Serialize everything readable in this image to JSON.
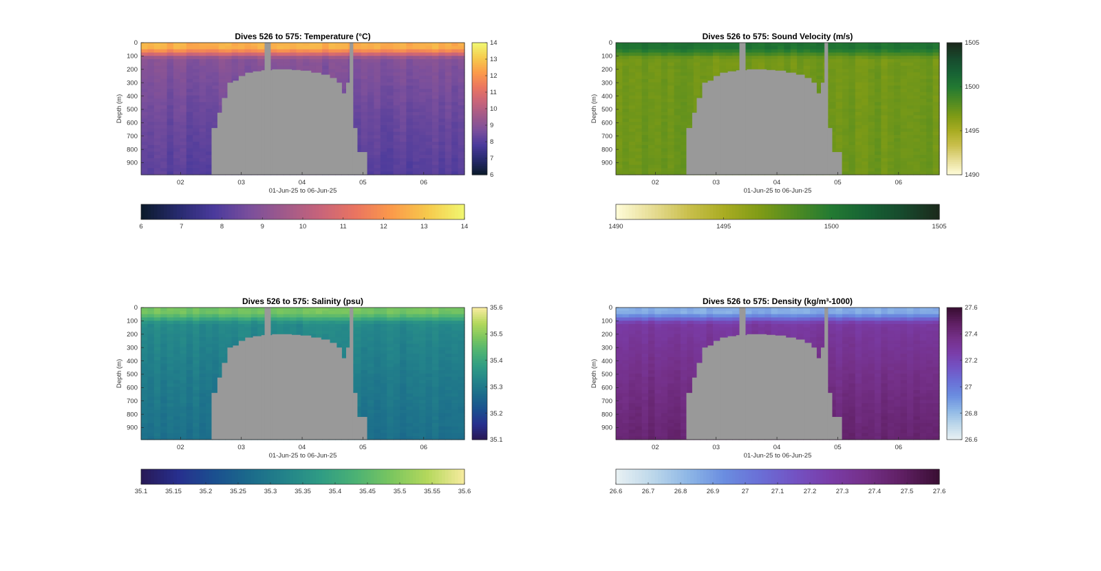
{
  "figure": {
    "x_range_label": "01-Jun-25 to 06-Jun-25",
    "depth_label": "Depth (m)",
    "seafloor_color": "#999999",
    "background": "#ffffff"
  },
  "chart_data": [
    {
      "type": "heatmap",
      "title": "Dives 526 to 575: Temperature (°C)",
      "variable": "temperature",
      "units": "°C",
      "xlabel": "01-Jun-25 to 06-Jun-25",
      "ylabel": "Depth (m)",
      "x_ticks": [
        "02",
        "03",
        "04",
        "05",
        "06"
      ],
      "y_ticks": [
        0,
        100,
        200,
        300,
        400,
        500,
        600,
        700,
        800,
        900
      ],
      "ylim": [
        0,
        990
      ],
      "y_reversed": true,
      "clim": [
        6,
        14
      ],
      "colorbar_right_ticks": [
        6,
        7,
        8,
        9,
        10,
        11,
        12,
        13,
        14
      ],
      "colorbar_bottom_ticks": [
        6,
        7,
        8,
        9,
        10,
        11,
        12,
        13,
        14
      ],
      "colormap": [
        "#0b1b2d",
        "#272a6e",
        "#4a3a9c",
        "#7a4f9c",
        "#a05a8a",
        "#c8647a",
        "#ea7560",
        "#fb9a4a",
        "#f6c94c",
        "#f1f56f"
      ],
      "profile": {
        "surface": 12.6,
        "deep": 8.0,
        "mid_deep": 9.3
      },
      "grid": false
    },
    {
      "type": "heatmap",
      "title": "Dives 526 to 575: Sound Velocity (m/s)",
      "variable": "sound_velocity",
      "units": "m/s",
      "xlabel": "01-Jun-25 to 06-Jun-25",
      "ylabel": "Depth (m)",
      "x_ticks": [
        "02",
        "03",
        "04",
        "05",
        "06"
      ],
      "y_ticks": [
        0,
        100,
        200,
        300,
        400,
        500,
        600,
        700,
        800,
        900
      ],
      "ylim": [
        0,
        990
      ],
      "y_reversed": true,
      "clim": [
        1490,
        1505
      ],
      "colorbar_right_ticks": [
        1490,
        1495,
        1500,
        1505
      ],
      "colorbar_bottom_ticks": [
        1490,
        1495,
        1500,
        1505
      ],
      "colormap": [
        "#fefbd6",
        "#e6dc93",
        "#c9bf4c",
        "#a9ac22",
        "#7f9b16",
        "#4f8b22",
        "#237a32",
        "#176234",
        "#174a2d",
        "#1b2a1c"
      ],
      "profile": {
        "surface": 1500.5,
        "deep": 1497.3,
        "mid_deep": 1497.0
      },
      "grid": false
    },
    {
      "type": "heatmap",
      "title": "Dives 526 to 575: Salinity (psu)",
      "variable": "salinity",
      "units": "psu",
      "xlabel": "01-Jun-25 to 06-Jun-25",
      "ylabel": "Depth (m)",
      "x_ticks": [
        "02",
        "03",
        "04",
        "05",
        "06"
      ],
      "y_ticks": [
        0,
        100,
        200,
        300,
        400,
        500,
        600,
        700,
        800,
        900
      ],
      "ylim": [
        0,
        990
      ],
      "y_reversed": true,
      "clim": [
        35.1,
        35.6
      ],
      "colorbar_right_ticks": [
        35.1,
        35.2,
        35.3,
        35.4,
        35.5,
        35.6
      ],
      "colorbar_bottom_ticks": [
        "35.1",
        "35.15",
        "35.2",
        "35.25",
        "35.3",
        "35.35",
        "35.4",
        "35.45",
        "35.5",
        "35.55",
        "35.6"
      ],
      "colormap": [
        "#281a58",
        "#272f8e",
        "#1b4f8f",
        "#1b6a8b",
        "#23838a",
        "#2f9c84",
        "#4cb274",
        "#7bc65f",
        "#b4d85c",
        "#f4ea9c"
      ],
      "profile": {
        "surface": 35.48,
        "deep": 35.28,
        "mid_deep": 35.36
      },
      "grid": false
    },
    {
      "type": "heatmap",
      "title": "Dives 526 to 575: Density (kg/m³-1000)",
      "variable": "density",
      "units": "kg/m³-1000",
      "xlabel": "01-Jun-25 to 06-Jun-25",
      "ylabel": "Depth (m)",
      "x_ticks": [
        "02",
        "03",
        "04",
        "05",
        "06"
      ],
      "y_ticks": [
        0,
        100,
        200,
        300,
        400,
        500,
        600,
        700,
        800,
        900
      ],
      "ylim": [
        0,
        990
      ],
      "y_reversed": true,
      "clim": [
        26.6,
        27.6
      ],
      "colorbar_right_ticks": [
        "26.6",
        "26.8",
        "27",
        "27.2",
        "27.4",
        "27.6"
      ],
      "colorbar_bottom_ticks": [
        "26.6",
        "26.7",
        "26.8",
        "26.9",
        "27",
        "27.1",
        "27.2",
        "27.3",
        "27.4",
        "27.5",
        "27.6"
      ],
      "colormap": [
        "#e7f0f3",
        "#bcd7ea",
        "#8db6e6",
        "#6a8de0",
        "#6a6fd6",
        "#7352c3",
        "#7a3ca7",
        "#743088",
        "#5f1f63",
        "#3b0f35"
      ],
      "profile": {
        "surface": 26.85,
        "deep": 27.45,
        "mid_deep": 27.22
      },
      "grid": false
    }
  ]
}
